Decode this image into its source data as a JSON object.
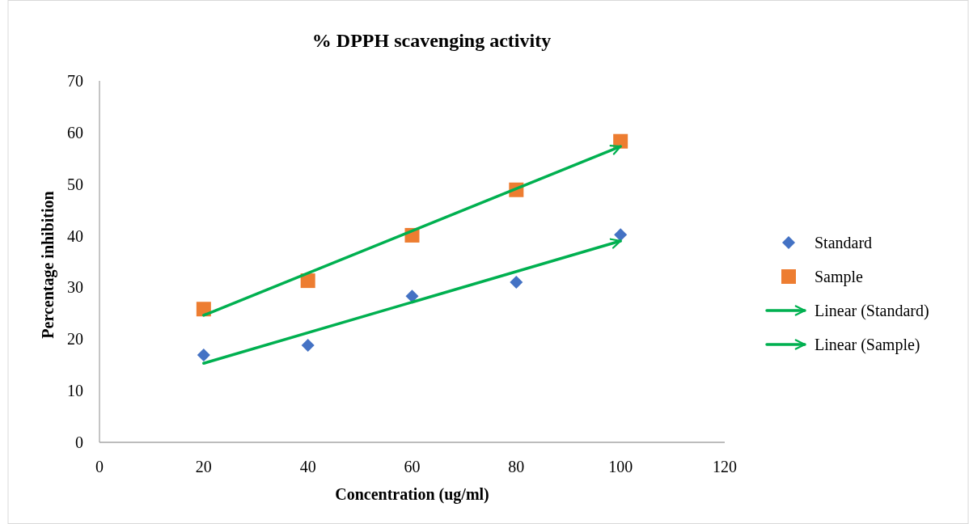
{
  "chart_data": {
    "type": "scatter",
    "title": "% DPPH scavenging activity",
    "xlabel": "Concentration (ug/ml)",
    "ylabel": "Percentage inhibition",
    "xlim": [
      0,
      120
    ],
    "xticks": [
      0,
      20,
      40,
      60,
      80,
      100,
      120
    ],
    "ylim": [
      0,
      70
    ],
    "yticks": [
      0,
      10,
      20,
      30,
      40,
      50,
      60,
      70
    ],
    "grid": false,
    "legend": "right",
    "series": [
      {
        "name": "Standard",
        "marker": "diamond",
        "color": "#4472c4",
        "x": [
          20,
          40,
          60,
          80,
          100
        ],
        "values": [
          16.9,
          18.8,
          28.3,
          31.0,
          40.2
        ]
      },
      {
        "name": "Sample",
        "marker": "square",
        "color": "#ed7d31",
        "x": [
          20,
          40,
          60,
          80,
          100
        ],
        "values": [
          25.8,
          31.3,
          40.1,
          48.9,
          58.3
        ]
      },
      {
        "name": "Linear (Standard)",
        "type": "line",
        "marker": "none",
        "line_style": "solid",
        "color": "#00b050",
        "x": [
          20,
          100
        ],
        "values": [
          15.3,
          39.0
        ]
      },
      {
        "name": "Linear (Sample)",
        "type": "line",
        "marker": "none",
        "line_style": "solid",
        "color": "#00b050",
        "x": [
          20,
          100
        ],
        "values": [
          24.6,
          57.3
        ]
      }
    ]
  }
}
